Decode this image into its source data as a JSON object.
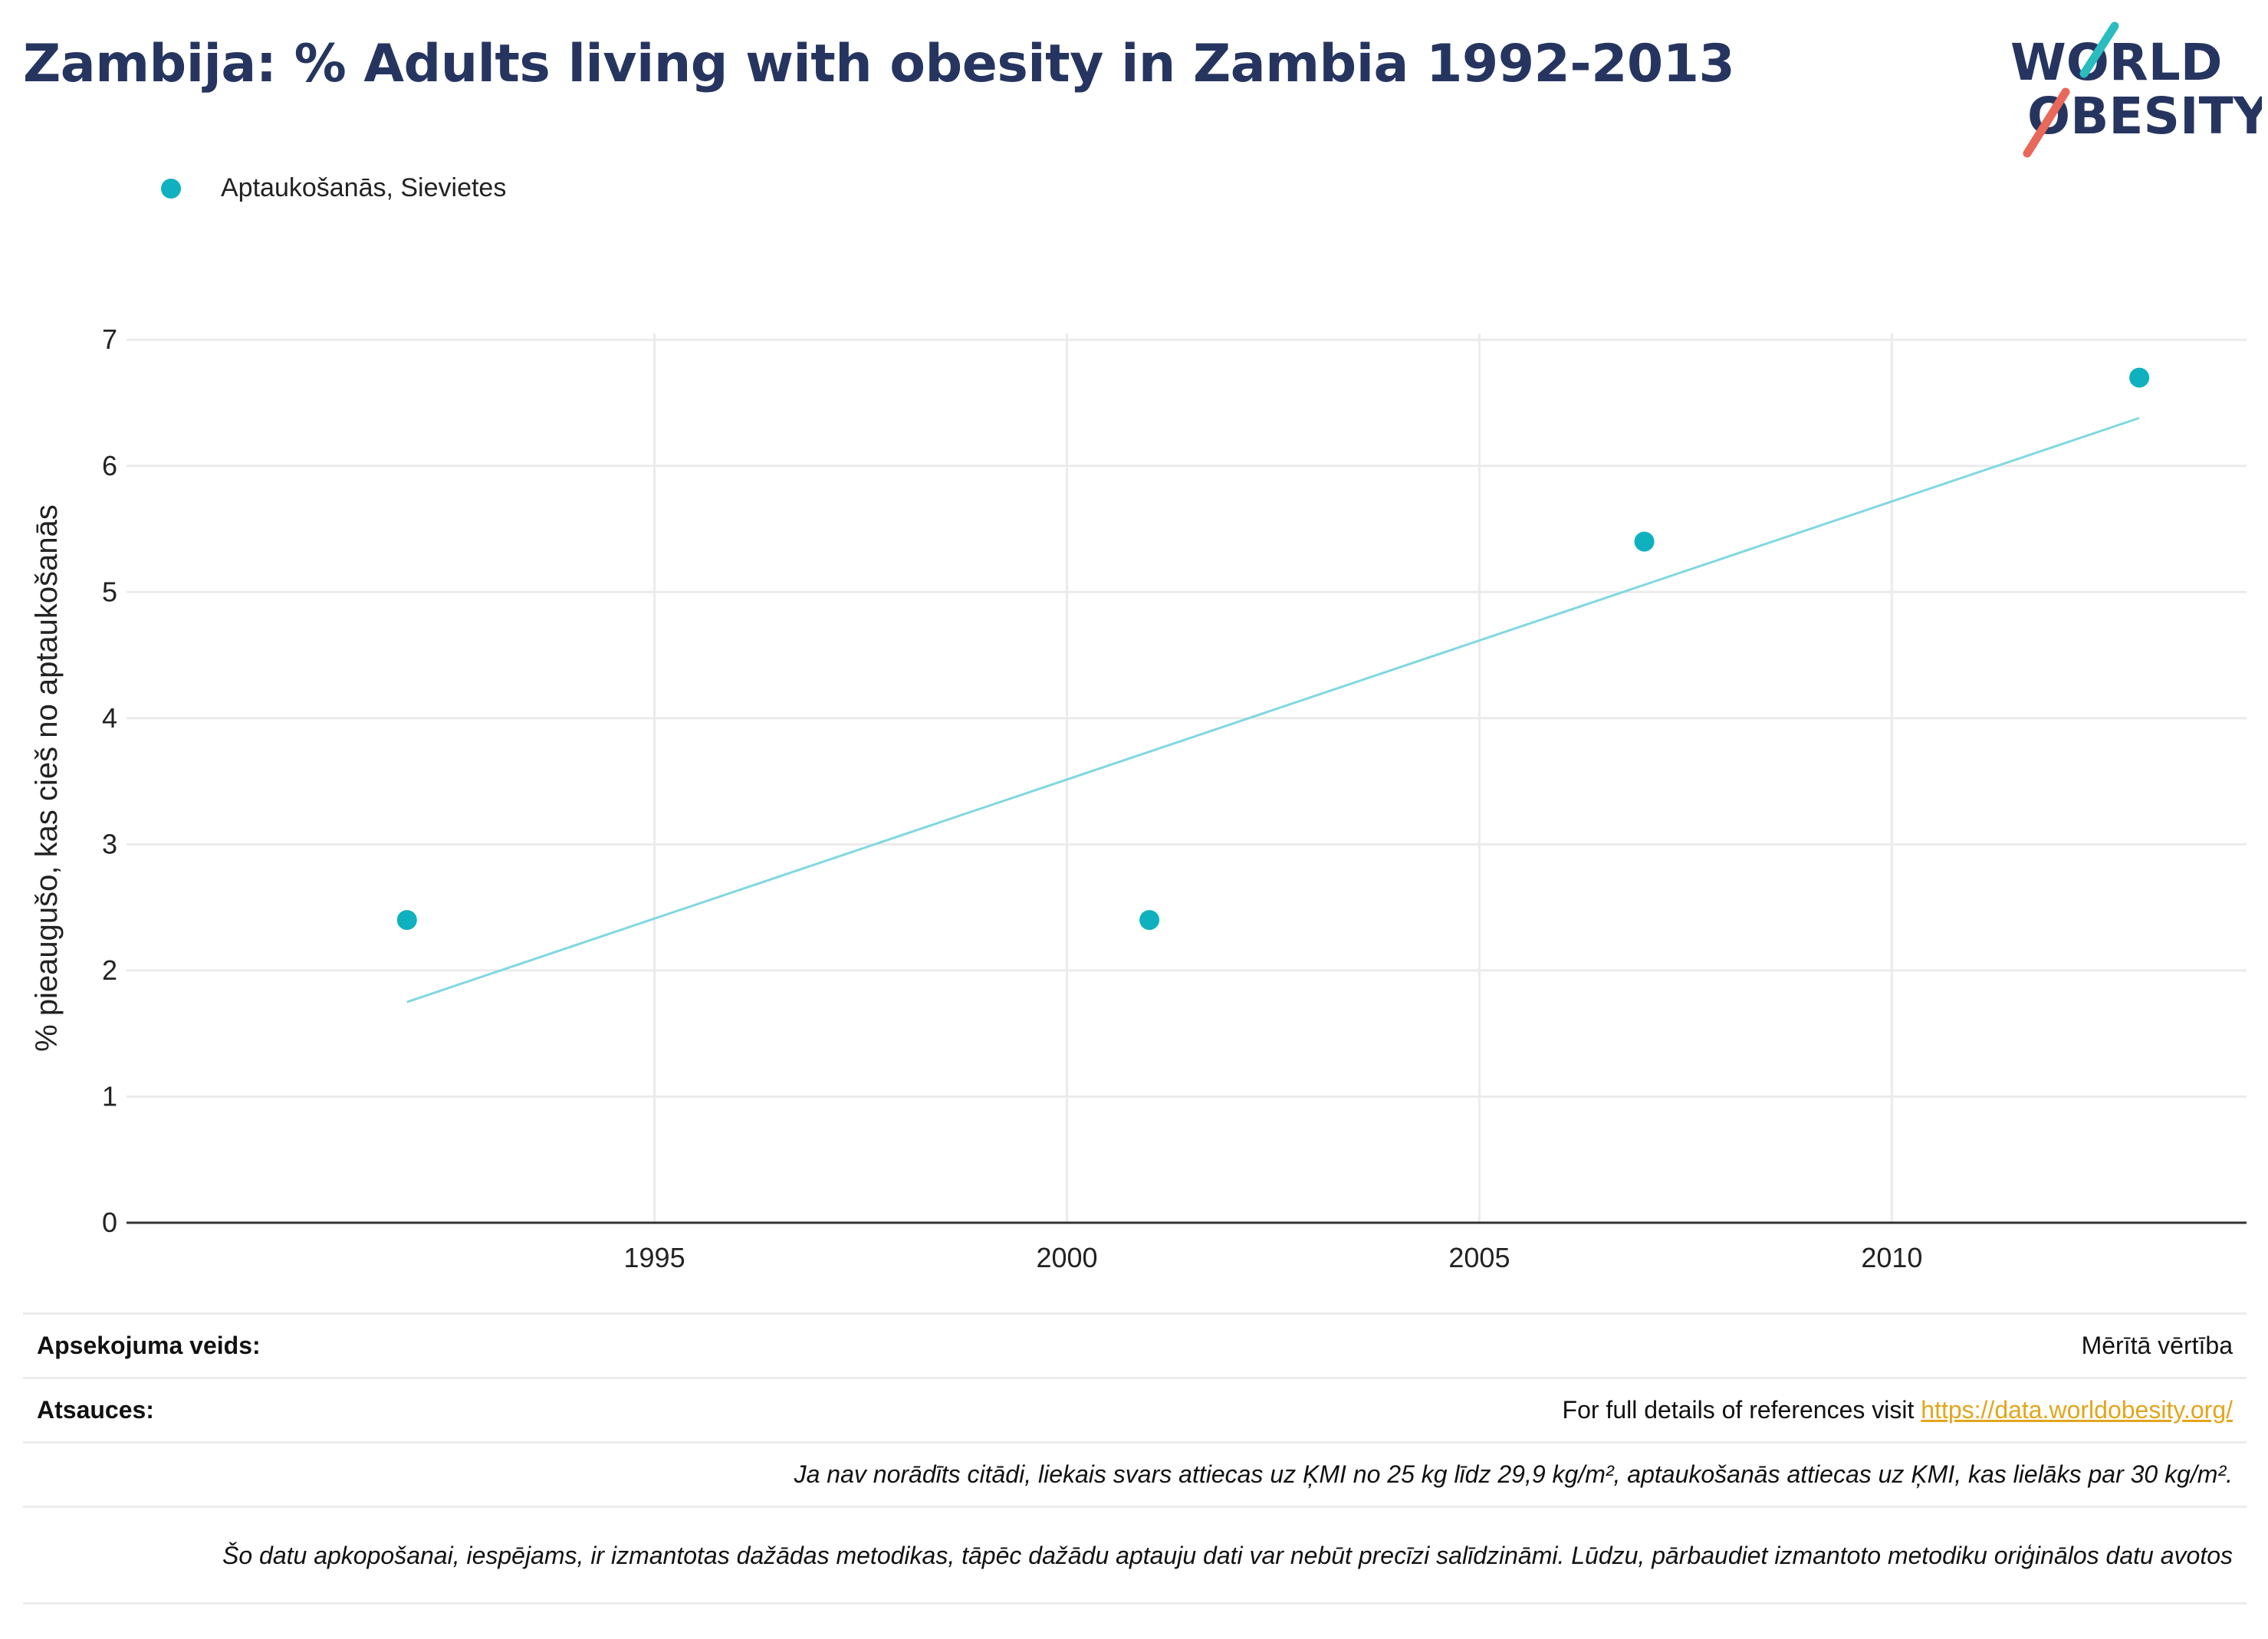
{
  "header": {
    "title": "Zambija: % Adults living with obesity in Zambia 1992-2013",
    "logo_line1": "WORLD",
    "logo_line2": "OBESITY"
  },
  "colors": {
    "title": "#263560",
    "series": "#0fb1bf",
    "trend": "#80d8e0",
    "logo_teal": "#2bbcc0",
    "logo_red": "#e8685a",
    "link": "#e3a51b"
  },
  "chart_data": {
    "type": "scatter",
    "title": "Zambija: % Adults living with obesity in Zambia 1992-2013",
    "xlabel": "",
    "ylabel": "% pieaugušo, kas cieš no aptaukošanās",
    "xlim": [
      1988.6,
      2014.3
    ],
    "ylim": [
      0,
      7.05
    ],
    "x_ticks": [
      1995,
      2000,
      2005,
      2010
    ],
    "y_ticks": [
      0,
      1,
      2,
      3,
      4,
      5,
      6,
      7
    ],
    "grid": true,
    "legend_position": "top-left",
    "series": [
      {
        "name": "Aptaukošanās, Sievietes",
        "x": [
          1992,
          2001,
          2007,
          2013
        ],
        "y": [
          2.4,
          2.4,
          5.4,
          6.7
        ]
      }
    ],
    "trendline": {
      "x": [
        1992,
        2013
      ],
      "y": [
        1.75,
        6.38
      ]
    }
  },
  "footer": {
    "survey_label": "Apsekojuma veids:",
    "survey_value": "Mērītā vērtība",
    "refs_label": "Atsauces:",
    "refs_text": "For full details of references visit ",
    "refs_link": "https://data.worldobesity.org/",
    "note1": "Ja nav norādīts citādi, liekais svars attiecas uz ĶMI no 25 kg līdz 29,9 kg/m², aptaukošanās attiecas uz ĶMI, kas lielāks par 30 kg/m².",
    "note2": "Šo datu apkopošanai, iespējams, ir izmantotas dažādas metodikas, tāpēc dažādu aptauju dati var nebūt precīzi salīdzināmi. Lūdzu, pārbaudiet izmantoto metodiku oriģinālos datu avotos"
  }
}
